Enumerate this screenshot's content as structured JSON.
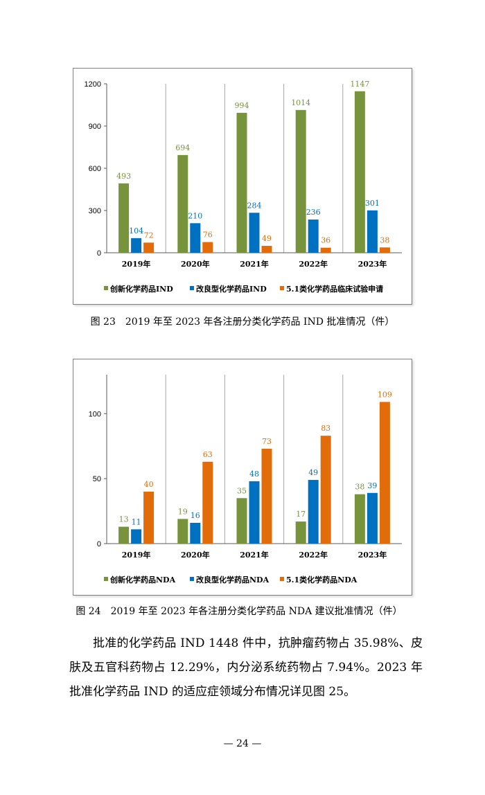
{
  "chart_data": [
    {
      "type": "bar",
      "categories": [
        "2019年",
        "2020年",
        "2021年",
        "2022年",
        "2023年"
      ],
      "series": [
        {
          "name": "创新化学药品IND",
          "values": [
            493,
            694,
            994,
            1014,
            1147
          ],
          "color": "#77933c"
        },
        {
          "name": "改良型化学药品IND",
          "values": [
            104,
            210,
            284,
            236,
            301
          ],
          "color": "#0070c0"
        },
        {
          "name": "5.1类化学药品临床试验申请",
          "values": [
            72,
            76,
            49,
            36,
            38
          ],
          "color": "#e36c0a"
        }
      ],
      "ylim": [
        0,
        1200
      ],
      "yticks": [
        0,
        300,
        600,
        900,
        1200
      ],
      "legend": "bottom",
      "grid": false
    },
    {
      "type": "bar",
      "categories": [
        "2019年",
        "2020年",
        "2021年",
        "2022年",
        "2023年"
      ],
      "series": [
        {
          "name": "创新化学药品NDA",
          "values": [
            13,
            19,
            35,
            17,
            38
          ],
          "color": "#77933c"
        },
        {
          "name": "改良型化学药品NDA",
          "values": [
            11,
            16,
            48,
            49,
            39
          ],
          "color": "#0070c0"
        },
        {
          "name": "5.1类化学药品NDA",
          "values": [
            40,
            63,
            73,
            83,
            109
          ],
          "color": "#e36c0a"
        }
      ],
      "ylim": [
        0,
        130
      ],
      "yticks": [
        0,
        50,
        100
      ],
      "legend": "bottom",
      "grid": false
    }
  ],
  "captions": {
    "fig23": "图 23　2019 年至 2023 年各注册分类化学药品 IND 批准情况（件）",
    "fig24": "图 24　2019 年至 2023 年各注册分类化学药品 NDA 建议批准情况（件）"
  },
  "body_text": "批准的化学药品 IND 1448 件中，抗肿瘤药物占 35.98%、皮肤及五官科药物占 12.29%，内分泌系统药物占 7.94%。2023 年批准化学药品 IND 的适应症领域分布情况详见图 25。",
  "page_number": "— 24 —"
}
